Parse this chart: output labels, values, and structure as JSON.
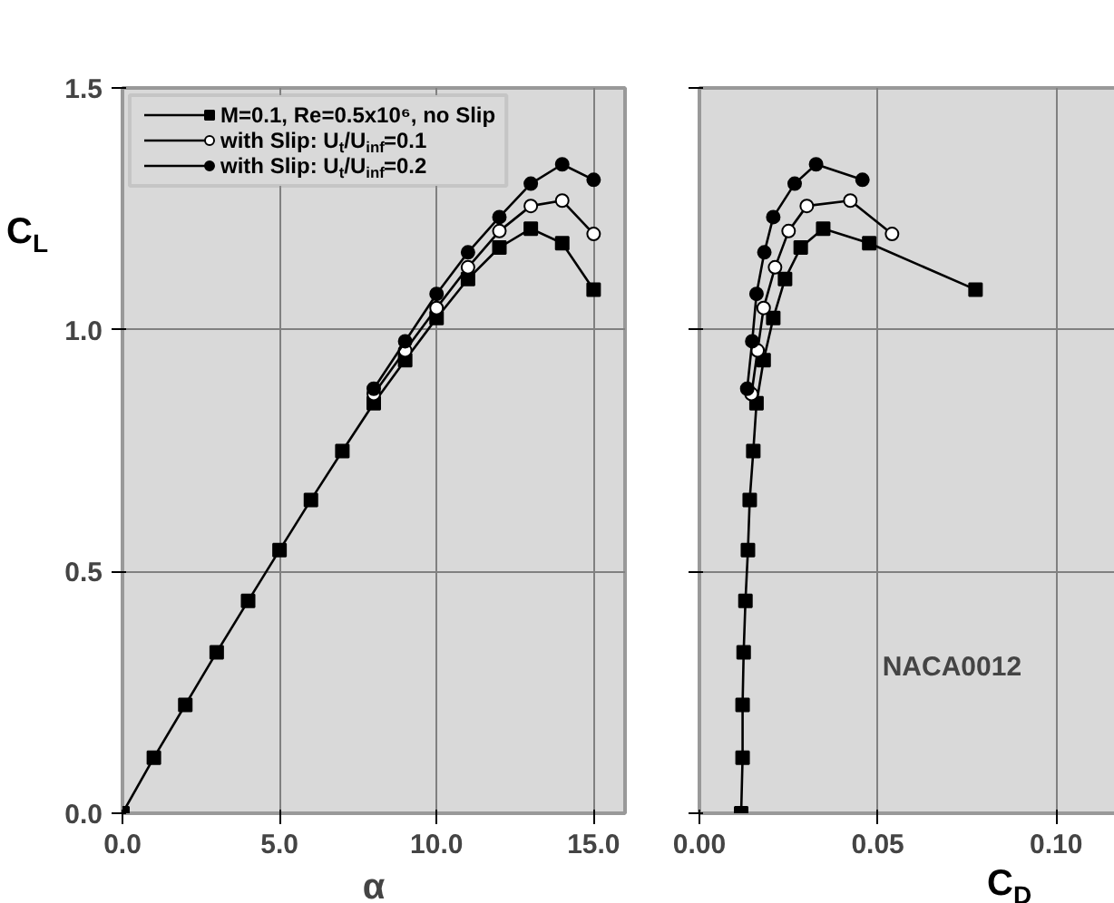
{
  "chart_data": [
    {
      "type": "line",
      "xlabel": "α",
      "ylabel": "C$_{L}$",
      "xlim": [
        0,
        16
      ],
      "ylim": [
        0,
        1.5
      ],
      "xticks": [
        {
          "value": 0,
          "label": "0.0"
        },
        {
          "value": 5,
          "label": "5.0"
        },
        {
          "value": 10,
          "label": "10.0"
        },
        {
          "value": 15,
          "label": "15.0"
        }
      ],
      "yticks": [
        {
          "value": 0,
          "label": "0.0"
        },
        {
          "value": 0.5,
          "label": "0.5"
        },
        {
          "value": 1.0,
          "label": "1.0"
        },
        {
          "value": 1.5,
          "label": "1.5"
        }
      ],
      "grid": true,
      "legend": "top left",
      "line_style": "solid",
      "series": [
        {
          "name": "M=0.1, Re=0.5x10⁶, no Slip",
          "color": "#000000",
          "marker": "square",
          "x": [
            0,
            1,
            2,
            3,
            4,
            5,
            6,
            7,
            8,
            9,
            10,
            11,
            12,
            13,
            14,
            15
          ],
          "values": [
            0,
            0.115,
            0.224,
            0.333,
            0.439,
            0.544,
            0.648,
            0.749,
            0.848,
            0.937,
            1.024,
            1.105,
            1.17,
            1.209,
            1.179,
            1.083
          ]
        },
        {
          "name": "with Slip: U$_{t}$/U$_{inf}$=0.1",
          "color": "#000000",
          "marker": "circle_open",
          "x": [
            8,
            9,
            10,
            11,
            12,
            13,
            14,
            15
          ],
          "values": [
            0.867,
            0.957,
            1.045,
            1.129,
            1.204,
            1.256,
            1.267,
            1.198
          ]
        },
        {
          "name": "with Slip: U$_{t}$/U$_{inf}$=0.2",
          "color": "#000000",
          "marker": "circle",
          "x": [
            8,
            9,
            10,
            11,
            12,
            13,
            14,
            15
          ],
          "values": [
            0.878,
            0.976,
            1.074,
            1.16,
            1.233,
            1.302,
            1.342,
            1.31
          ]
        }
      ]
    },
    {
      "type": "line",
      "xlabel": "C$_{D}$",
      "xlim": [
        0,
        0.118
      ],
      "ylim": [
        0,
        1.5
      ],
      "xticks": [
        {
          "value": 0,
          "label": "0.00"
        },
        0.05,
        {
          "value": 0.1,
          "label": "0.10"
        }
      ],
      "yticks": [
        {
          "value": 0,
          "label": null
        },
        {
          "value": 0.5,
          "label": null
        },
        {
          "value": 1.0,
          "label": null
        },
        {
          "value": 1.5,
          "label": null
        }
      ],
      "tick_labels": "x",
      "grid": true,
      "line_style": "solid",
      "annotations": [
        "NACA0012"
      ],
      "series": [
        {
          "color": "#000000",
          "marker": "square",
          "x": [
            0.0117,
            0.0121,
            0.0121,
            0.0124,
            0.0129,
            0.0136,
            0.0141,
            0.0151,
            0.016,
            0.018,
            0.0207,
            0.024,
            0.0284,
            0.0347,
            0.0476,
            0.0774
          ],
          "values": [
            0,
            0.115,
            0.224,
            0.333,
            0.439,
            0.544,
            0.648,
            0.749,
            0.848,
            0.937,
            1.024,
            1.105,
            1.17,
            1.209,
            1.179,
            1.083
          ]
        },
        {
          "color": "#000000",
          "marker": "circle_open",
          "x": [
            0.0146,
            0.0163,
            0.018,
            0.0212,
            0.025,
            0.0301,
            0.0423,
            0.054
          ],
          "values": [
            0.867,
            0.957,
            1.045,
            1.129,
            1.204,
            1.256,
            1.267,
            1.198
          ]
        },
        {
          "color": "#000000",
          "marker": "circle",
          "x": [
            0.0134,
            0.0148,
            0.016,
            0.0182,
            0.0207,
            0.0267,
            0.0327,
            0.0457
          ],
          "values": [
            0.878,
            0.976,
            1.074,
            1.16,
            1.233,
            1.302,
            1.342,
            1.31
          ]
        }
      ]
    }
  ]
}
